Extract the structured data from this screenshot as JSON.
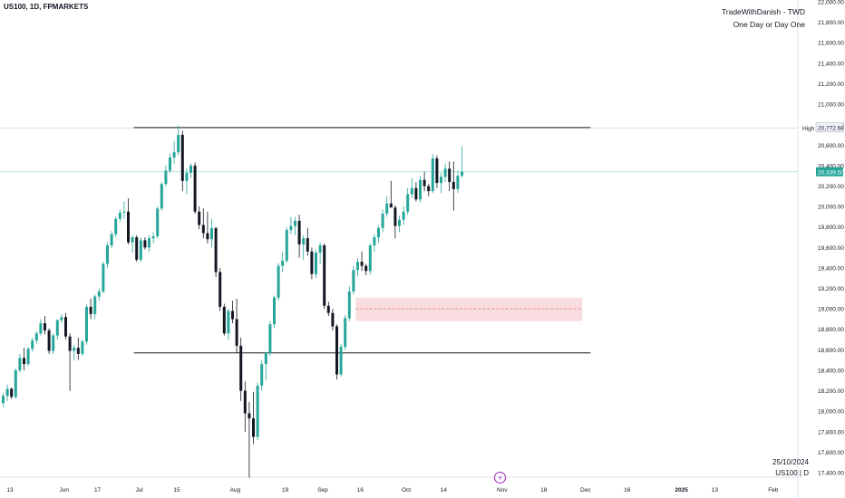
{
  "symbol_label": "US100, 1D, FPMARKETS",
  "watermark": {
    "line1": "TradeWithDanish - TWD",
    "line2": "One Day or Day One"
  },
  "bottom_right": {
    "date": "25/10/2024",
    "symbol": "US100 | D"
  },
  "colors": {
    "up": "#26a69a",
    "down": "#131722",
    "zone_fill": "#f8d7da",
    "zone_line": "#e57373",
    "guide": "#a7e3dd",
    "price_label": "#26a69a"
  },
  "icons": {
    "events": "lightning-icon"
  },
  "chart_data": {
    "type": "candlestick",
    "instrument": "US100",
    "timeframe": "1D",
    "ylim": [
      17400,
      22000
    ],
    "y_ticks": [
      17400,
      17600,
      17800,
      18000,
      18200,
      18400,
      18600,
      18800,
      19000,
      19200,
      19400,
      19600,
      19800,
      20000,
      20200,
      20400,
      20600,
      20800,
      21000,
      21200,
      21400,
      21600,
      21800,
      22000
    ],
    "x_ticks": [
      {
        "label": "13",
        "index": 0
      },
      {
        "label": "Jun",
        "index": 13
      },
      {
        "label": "17",
        "index": 21
      },
      {
        "label": "Jul",
        "index": 31
      },
      {
        "label": "15",
        "index": 40
      },
      {
        "label": "Aug",
        "index": 54
      },
      {
        "label": "19",
        "index": 66
      },
      {
        "label": "Sep",
        "index": 75
      },
      {
        "label": "16",
        "index": 84
      },
      {
        "label": "Oct",
        "index": 95
      },
      {
        "label": "14",
        "index": 104
      },
      {
        "label": "Nov",
        "index": 118
      },
      {
        "label": "18",
        "index": 128
      },
      {
        "label": "Dec",
        "index": 138
      },
      {
        "label": "16",
        "index": 148
      },
      {
        "label": "2025",
        "index": 161
      },
      {
        "label": "13",
        "index": 169
      },
      {
        "label": "Feb",
        "index": 183
      }
    ],
    "high_label": "High",
    "high_value": "20,772.68",
    "last_price": "20,339.50",
    "levels": [
      {
        "name": "resistance",
        "value": 20772,
        "from_index": 31,
        "to_index": 139
      },
      {
        "name": "support",
        "value": 18570,
        "from_index": 31,
        "to_index": 139
      }
    ],
    "zone": {
      "top": 19110,
      "bottom": 18880,
      "mid": 19000,
      "from_index": 84,
      "to_index": 137
    },
    "ohlc": [
      [
        18080,
        18180,
        18040,
        18150
      ],
      [
        18150,
        18260,
        18100,
        18220
      ],
      [
        18220,
        18230,
        18120,
        18140
      ],
      [
        18140,
        18420,
        18120,
        18400
      ],
      [
        18400,
        18560,
        18380,
        18520
      ],
      [
        18520,
        18620,
        18400,
        18460
      ],
      [
        18460,
        18630,
        18440,
        18610
      ],
      [
        18610,
        18720,
        18580,
        18690
      ],
      [
        18690,
        18780,
        18660,
        18760
      ],
      [
        18760,
        18900,
        18740,
        18860
      ],
      [
        18860,
        18930,
        18750,
        18790
      ],
      [
        18790,
        18810,
        18560,
        18590
      ],
      [
        18590,
        18760,
        18560,
        18740
      ],
      [
        18740,
        18900,
        18700,
        18890
      ],
      [
        18890,
        18950,
        18860,
        18920
      ],
      [
        18920,
        18960,
        18700,
        18730
      ],
      [
        18730,
        18760,
        18200,
        18590
      ],
      [
        18590,
        18650,
        18500,
        18620
      ],
      [
        18620,
        18720,
        18500,
        18560
      ],
      [
        18560,
        18700,
        18540,
        18680
      ],
      [
        18680,
        19050,
        18650,
        19020
      ],
      [
        19020,
        19100,
        18900,
        18950
      ],
      [
        18950,
        19140,
        18900,
        19120
      ],
      [
        19120,
        19200,
        19080,
        19170
      ],
      [
        19170,
        19460,
        19150,
        19440
      ],
      [
        19440,
        19650,
        19400,
        19620
      ],
      [
        19620,
        19760,
        19590,
        19730
      ],
      [
        19730,
        19900,
        19700,
        19880
      ],
      [
        19880,
        19970,
        19850,
        19940
      ],
      [
        19940,
        20050,
        19880,
        19950
      ],
      [
        19950,
        20080,
        19630,
        19650
      ],
      [
        19650,
        19720,
        19550,
        19700
      ],
      [
        19700,
        19720,
        19460,
        19480
      ],
      [
        19480,
        19700,
        19460,
        19670
      ],
      [
        19670,
        19700,
        19580,
        19600
      ],
      [
        19600,
        19720,
        19560,
        19690
      ],
      [
        19690,
        19750,
        19640,
        19710
      ],
      [
        19710,
        20000,
        19690,
        19980
      ],
      [
        19980,
        20240,
        19960,
        20220
      ],
      [
        20220,
        20400,
        20200,
        20350
      ],
      [
        20350,
        20520,
        20330,
        20480
      ],
      [
        20480,
        20640,
        20420,
        20530
      ],
      [
        20530,
        20790,
        20500,
        20700
      ],
      [
        20700,
        20740,
        20150,
        20250
      ],
      [
        20250,
        20370,
        20120,
        20330
      ],
      [
        20330,
        20420,
        20280,
        20400
      ],
      [
        20400,
        20430,
        19930,
        19950
      ],
      [
        19950,
        20000,
        19780,
        19820
      ],
      [
        19820,
        19980,
        19690,
        19740
      ],
      [
        19740,
        19950,
        19640,
        19680
      ],
      [
        19680,
        19880,
        19600,
        19790
      ],
      [
        19790,
        19800,
        19310,
        19360
      ],
      [
        19360,
        19400,
        18980,
        19020
      ],
      [
        19020,
        19050,
        18740,
        18760
      ],
      [
        18760,
        19000,
        18700,
        18980
      ],
      [
        18980,
        19080,
        18860,
        18900
      ],
      [
        18900,
        19100,
        18570,
        18640
      ],
      [
        18640,
        18720,
        18100,
        18200
      ],
      [
        18200,
        18290,
        17800,
        17980
      ],
      [
        17980,
        18090,
        17350,
        17930
      ],
      [
        17930,
        18190,
        17680,
        17750
      ],
      [
        17750,
        18280,
        17720,
        18250
      ],
      [
        18250,
        18500,
        18200,
        18460
      ],
      [
        18460,
        18580,
        18300,
        18570
      ],
      [
        18570,
        18880,
        18540,
        18850
      ],
      [
        18850,
        19130,
        18810,
        19110
      ],
      [
        19110,
        19450,
        19080,
        19420
      ],
      [
        19420,
        19560,
        19360,
        19470
      ],
      [
        19470,
        19800,
        19450,
        19770
      ],
      [
        19770,
        19900,
        19730,
        19810
      ],
      [
        19810,
        19900,
        19720,
        19860
      ],
      [
        19860,
        19920,
        19500,
        19630
      ],
      [
        19630,
        19720,
        19480,
        19690
      ],
      [
        19690,
        19790,
        19520,
        19560
      ],
      [
        19560,
        19600,
        19290,
        19340
      ],
      [
        19340,
        19580,
        19300,
        19550
      ],
      [
        19550,
        19650,
        19440,
        19620
      ],
      [
        19620,
        19640,
        19000,
        19030
      ],
      [
        19030,
        19070,
        18930,
        18960
      ],
      [
        18960,
        19000,
        18790,
        18830
      ],
      [
        18830,
        18850,
        18310,
        18360
      ],
      [
        18360,
        18660,
        18340,
        18630
      ],
      [
        18630,
        18940,
        18600,
        18910
      ],
      [
        18910,
        19220,
        18880,
        19170
      ],
      [
        19170,
        19420,
        19140,
        19380
      ],
      [
        19380,
        19500,
        19320,
        19460
      ],
      [
        19460,
        19560,
        19370,
        19420
      ],
      [
        19420,
        19440,
        19330,
        19370
      ],
      [
        19370,
        19640,
        19340,
        19620
      ],
      [
        19620,
        19730,
        19560,
        19700
      ],
      [
        19700,
        19810,
        19650,
        19790
      ],
      [
        19790,
        19970,
        19750,
        19930
      ],
      [
        19930,
        20100,
        19900,
        20030
      ],
      [
        20030,
        20250,
        20000,
        19990
      ],
      [
        19990,
        20010,
        19690,
        19810
      ],
      [
        19810,
        19910,
        19750,
        19870
      ],
      [
        19870,
        20000,
        19820,
        19950
      ],
      [
        19950,
        20180,
        19920,
        20120
      ],
      [
        20120,
        20280,
        20080,
        20180
      ],
      [
        20180,
        20240,
        20050,
        20070
      ],
      [
        20070,
        20300,
        20040,
        20260
      ],
      [
        20260,
        20340,
        20150,
        20200
      ],
      [
        20200,
        20220,
        20100,
        20150
      ],
      [
        20150,
        20510,
        20130,
        20470
      ],
      [
        20470,
        20500,
        20180,
        20230
      ],
      [
        20230,
        20330,
        20130,
        20290
      ],
      [
        20290,
        20420,
        20240,
        20370
      ],
      [
        20370,
        20440,
        20150,
        20240
      ],
      [
        20240,
        20440,
        19960,
        20170
      ],
      [
        20170,
        20350,
        20130,
        20300
      ],
      [
        20300,
        20590,
        20280,
        20340
      ]
    ]
  }
}
